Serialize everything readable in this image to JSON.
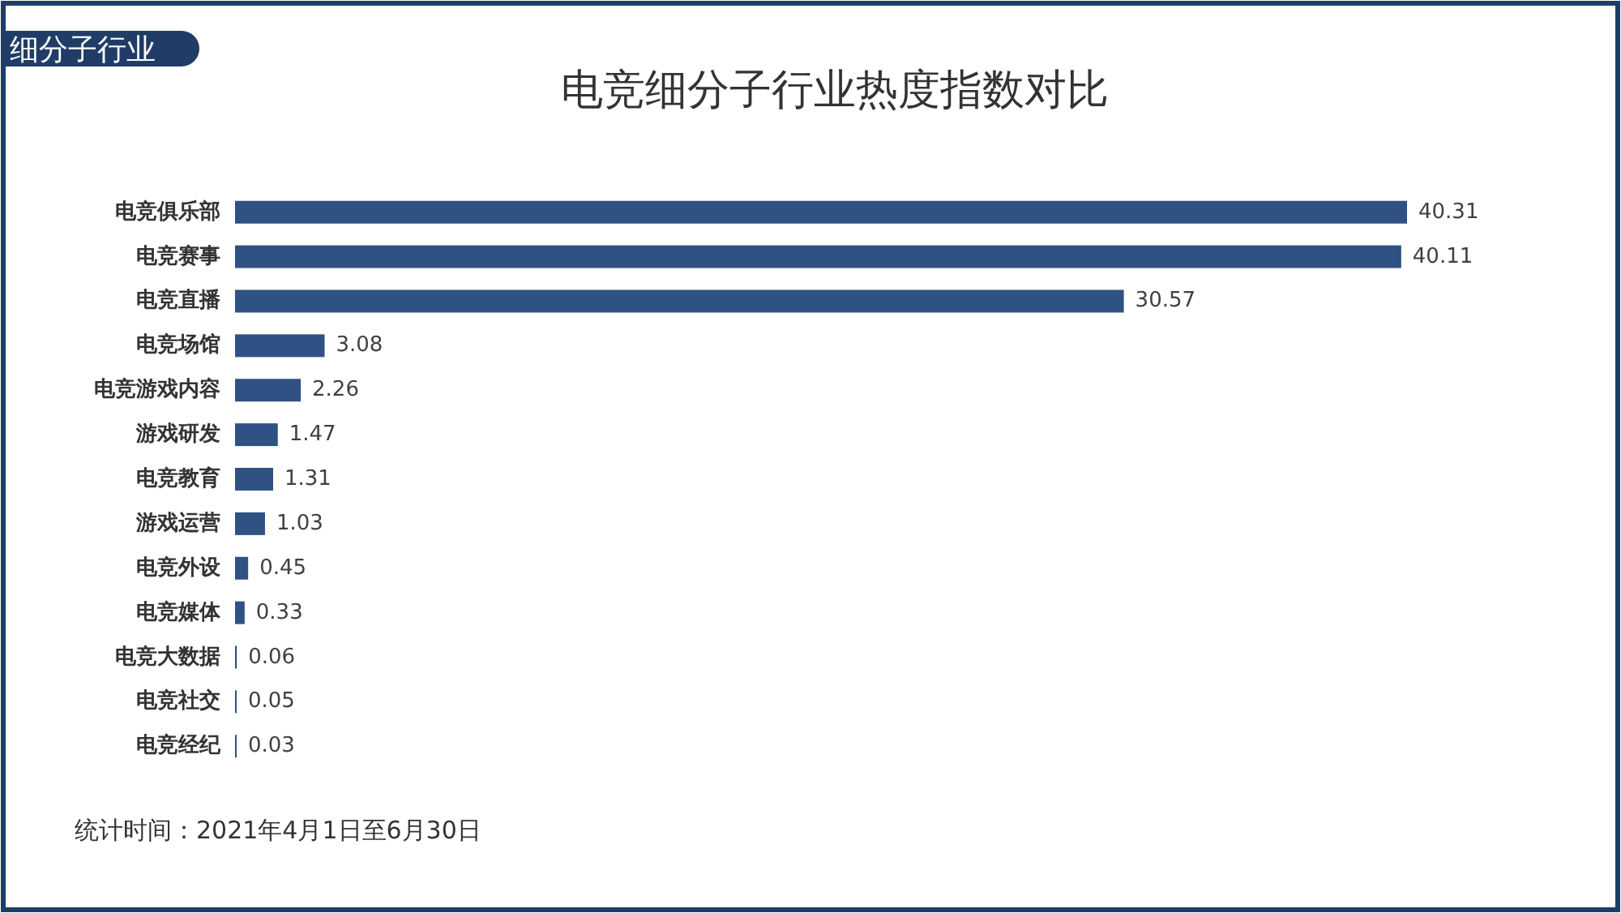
{
  "chart_data": {
    "type": "bar",
    "orientation": "horizontal",
    "title": "电竞细分子行业热度指数对比",
    "categories": [
      "电竞俱乐部",
      "电竞赛事",
      "电竞直播",
      "电竞场馆",
      "电竞游戏内容",
      "游戏研发",
      "电竞教育",
      "游戏运营",
      "电竞外设",
      "电竞媒体",
      "电竞大数据",
      "电竞社交",
      "电竞经纪"
    ],
    "values": [
      40.31,
      40.11,
      30.57,
      3.08,
      2.26,
      1.47,
      1.31,
      1.03,
      0.45,
      0.33,
      0.06,
      0.05,
      0.03
    ],
    "color": "#2f5183",
    "data_labels": true,
    "annotations": [
      "细分子行业",
      "统计时间：2021年4月1日至6月30日"
    ]
  }
}
